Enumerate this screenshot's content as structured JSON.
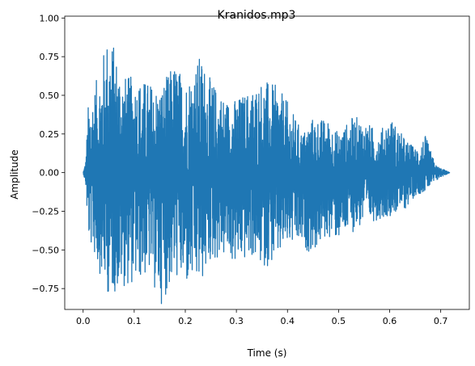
{
  "chart_data": {
    "type": "line",
    "title": "Kranidos.mp3",
    "xlabel": "Time (s)",
    "ylabel": "Amplitude",
    "xlim": [
      -0.036,
      0.756
    ],
    "ylim": [
      -0.885,
      1.012
    ],
    "x_ticks": [
      0.0,
      0.1,
      0.2,
      0.3,
      0.4,
      0.5,
      0.6,
      0.7
    ],
    "x_tick_labels": [
      "0.0",
      "0.1",
      "0.2",
      "0.3",
      "0.4",
      "0.5",
      "0.6",
      "0.7"
    ],
    "y_ticks": [
      -0.75,
      -0.5,
      -0.25,
      0.0,
      0.25,
      0.5,
      0.75,
      1.0
    ],
    "y_tick_labels": [
      "−0.75",
      "−0.50",
      "−0.25",
      "0.00",
      "0.25",
      "0.50",
      "0.75",
      "1.00"
    ],
    "grid": false,
    "series_color": "#1f77b4",
    "x_start": 0.0,
    "x_end": 0.718,
    "envelope": {
      "t": [
        0.0,
        0.005,
        0.01,
        0.02,
        0.03,
        0.05,
        0.08,
        0.1,
        0.13,
        0.15,
        0.18,
        0.2,
        0.23,
        0.25,
        0.28,
        0.3,
        0.33,
        0.35,
        0.38,
        0.4,
        0.43,
        0.45,
        0.48,
        0.5,
        0.53,
        0.55,
        0.58,
        0.6,
        0.63,
        0.65,
        0.67,
        0.69,
        0.7,
        0.718
      ],
      "max": [
        0.0,
        0.08,
        0.44,
        0.54,
        0.64,
        0.93,
        0.63,
        0.62,
        0.59,
        0.55,
        0.72,
        0.6,
        0.77,
        0.6,
        0.48,
        0.48,
        0.55,
        0.61,
        0.56,
        0.46,
        0.26,
        0.36,
        0.34,
        0.26,
        0.37,
        0.34,
        0.26,
        0.37,
        0.22,
        0.16,
        0.24,
        0.05,
        0.03,
        0.0
      ],
      "min": [
        0.0,
        -0.08,
        -0.44,
        -0.52,
        -0.63,
        -0.8,
        -0.74,
        -0.72,
        -0.66,
        -0.87,
        -0.68,
        -0.75,
        -0.74,
        -0.58,
        -0.55,
        -0.61,
        -0.55,
        -0.62,
        -0.58,
        -0.48,
        -0.5,
        -0.52,
        -0.42,
        -0.44,
        -0.38,
        -0.34,
        -0.3,
        -0.28,
        -0.24,
        -0.15,
        -0.12,
        -0.06,
        -0.03,
        0.0
      ]
    }
  }
}
